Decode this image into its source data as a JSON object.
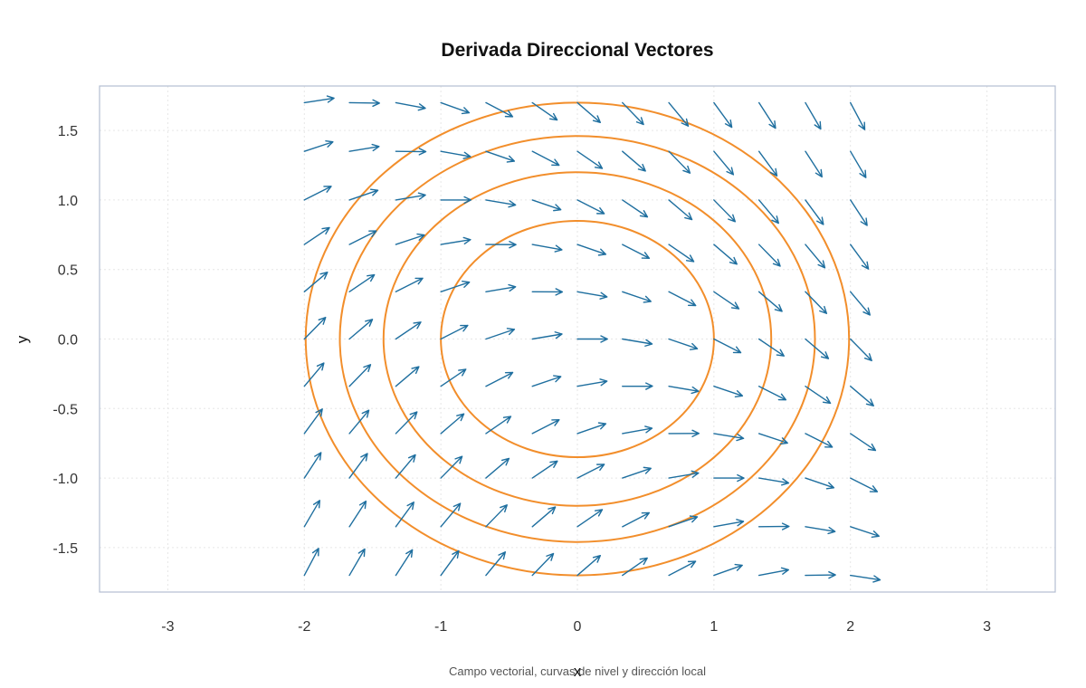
{
  "chart_data": {
    "type": "vector-field-contour",
    "title": "Derivada Direccional Vectores",
    "xlabel": "x",
    "ylabel": "y",
    "caption": "Campo vectorial, curvas de nivel y dirección local",
    "xlim": [
      -3.5,
      3.5
    ],
    "ylim": [
      -1.82,
      1.82
    ],
    "x_ticks": [
      -3,
      -2,
      -1,
      0,
      1,
      2,
      3
    ],
    "y_ticks": [
      -1.5,
      -1.0,
      -0.5,
      0.0,
      0.5,
      1.0,
      1.5
    ],
    "x_tick_labels": [
      "-3",
      "-2",
      "-1",
      "0",
      "1",
      "2",
      "3"
    ],
    "y_tick_labels": [
      "-1.5",
      "-1.0",
      "-0.5",
      "0.0",
      "0.5",
      "1.0",
      "1.5"
    ],
    "grid": true,
    "contour_levels": [
      0.85,
      1.2,
      1.46,
      1.7
    ],
    "contour_x_half_widths": [
      1.0,
      1.42,
      1.74,
      1.99
    ],
    "vector_grid": {
      "x": [
        -2.0,
        -1.67,
        -1.33,
        -1.0,
        -0.67,
        -0.33,
        0.0,
        0.33,
        0.67,
        1.0,
        1.33,
        1.67,
        2.0
      ],
      "y": [
        -1.7,
        -1.35,
        -1.0,
        -0.68,
        -0.34,
        0.0,
        0.34,
        0.68,
        1.0,
        1.35,
        1.7
      ],
      "arrow_scale": 0.22
    },
    "colors": {
      "contour": "#F28E2B",
      "arrow": "#1F6F9F",
      "plot_border": "#B4BFD1",
      "grid": "#E6E6E6"
    }
  }
}
